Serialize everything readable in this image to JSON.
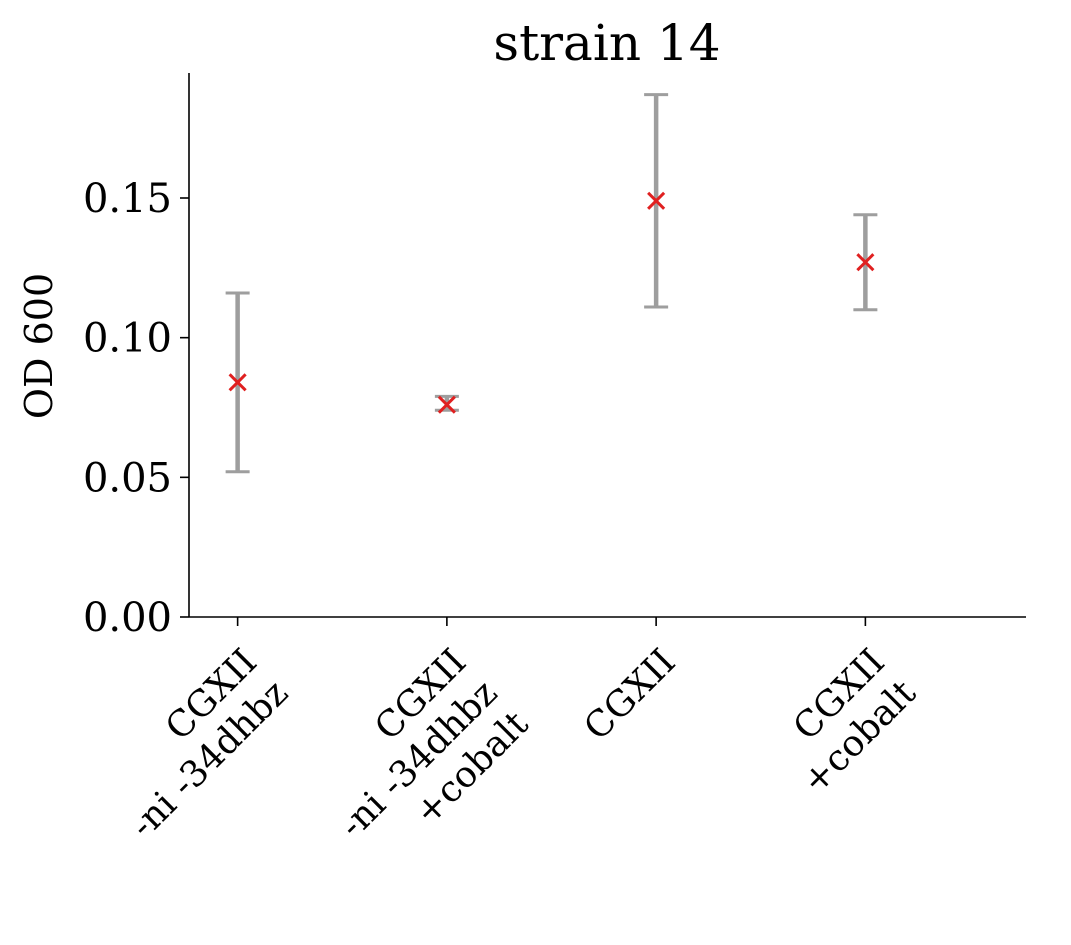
{
  "chart_data": {
    "type": "scatter",
    "title": "strain 14",
    "xlabel": "",
    "ylabel": "OD 600",
    "ylim": [
      0,
      0.195
    ],
    "yticks": [
      0.0,
      0.05,
      0.1,
      0.15
    ],
    "ytick_labels": [
      "0.00",
      "0.05",
      "0.10",
      "0.15"
    ],
    "grid": false,
    "categories": [
      [
        "CGXII",
        "-ni -34dhbz"
      ],
      [
        "CGXII",
        "-ni -34dhbz",
        "+cobalt"
      ],
      [
        "CGXII"
      ],
      [
        "CGXII",
        "+cobalt"
      ]
    ],
    "values": [
      0.084,
      0.076,
      0.149,
      0.127
    ],
    "error_low": [
      0.052,
      0.074,
      0.111,
      0.11
    ],
    "error_high": [
      0.116,
      0.079,
      0.187,
      0.144
    ],
    "colors": {
      "marker": "#e02020",
      "errorbar": "#9e9e9e",
      "axis": "#000000"
    }
  }
}
